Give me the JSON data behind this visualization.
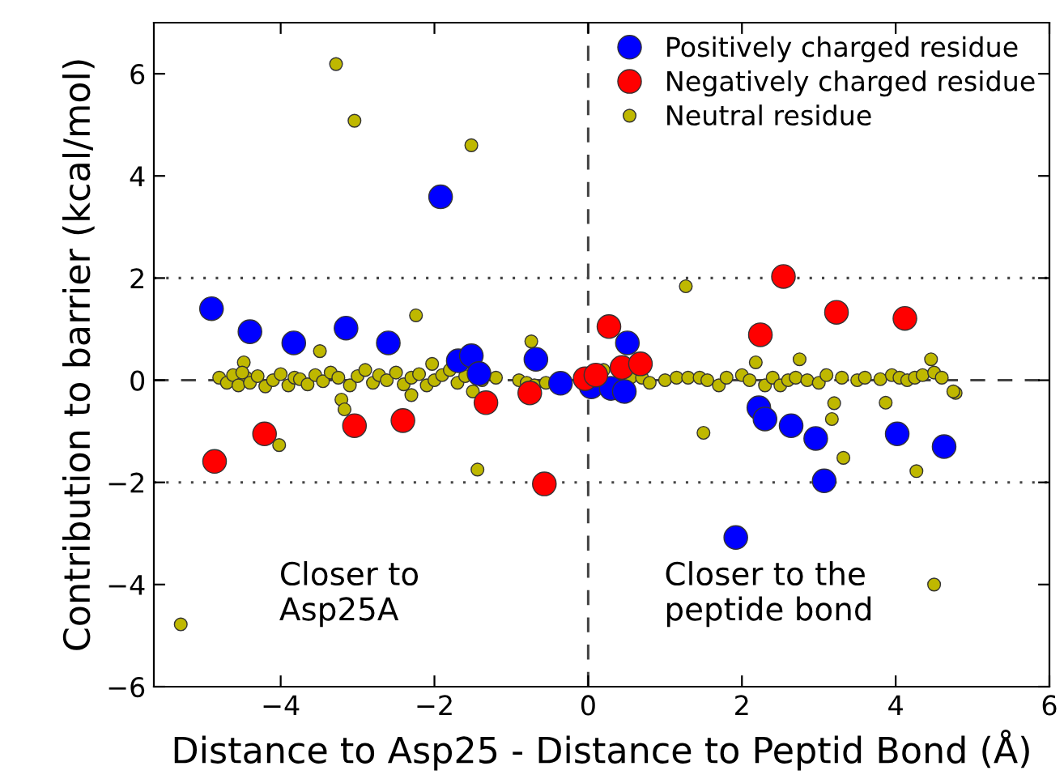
{
  "chart_data": {
    "type": "scatter",
    "xlabel": "Distance to Asp25 - Distance to Peptid Bond (Å)",
    "ylabel": "Contribution to barrier (kcal/mol)",
    "xlim": [
      -5.65,
      6
    ],
    "ylim": [
      -6,
      7
    ],
    "xticks": [
      {
        "value": -4,
        "label": "−4"
      },
      {
        "value": -2,
        "label": "−2"
      },
      0,
      2,
      4,
      6
    ],
    "yticks": [
      {
        "value": -6,
        "label": "−6"
      },
      {
        "value": -4,
        "label": "−4"
      },
      {
        "value": -2,
        "label": "−2"
      },
      0,
      2,
      4,
      6
    ],
    "marker": "circle",
    "legend": "top right",
    "grid": false,
    "ref_lines": [
      {
        "axis": "y",
        "value": 0,
        "line_style": "dashed"
      },
      {
        "axis": "y",
        "value": 2,
        "line_style": "dotted"
      },
      {
        "axis": "y",
        "value": -2,
        "line_style": "dotted"
      },
      {
        "axis": "x",
        "value": 0,
        "line_style": "dashed"
      }
    ],
    "annotations": [
      "Closer to\nAsp25A",
      "Closer to the\npeptide bond"
    ],
    "series": [
      {
        "name": "Positively charged residue",
        "color": "#0000ff",
        "x": [
          -4.9,
          -4.4,
          -3.83,
          -3.15,
          -2.6,
          -1.92,
          -1.69,
          -1.52,
          -1.42,
          -0.68,
          -0.36,
          0.04,
          0.3,
          0.47,
          0.51,
          2.22,
          2.3,
          2.64,
          2.96,
          3.07,
          4.02,
          4.63,
          1.92
        ],
        "values": [
          1.4,
          0.95,
          0.73,
          1.02,
          0.73,
          3.59,
          0.38,
          0.48,
          0.13,
          0.41,
          -0.06,
          -0.13,
          -0.16,
          -0.22,
          0.73,
          -0.54,
          -0.76,
          -0.89,
          -1.14,
          -1.97,
          -1.05,
          -1.3,
          -3.08
        ]
      },
      {
        "name": "Negatively charged residue",
        "color": "#ff0000",
        "x": [
          -4.86,
          -4.21,
          -3.04,
          -2.41,
          -1.33,
          -0.76,
          -0.57,
          -0.04,
          0.1,
          0.27,
          0.44,
          0.68,
          2.24,
          2.54,
          3.23,
          4.12
        ],
        "values": [
          -1.59,
          -1.05,
          -0.89,
          -0.79,
          -0.44,
          -0.25,
          -2.03,
          0.03,
          0.1,
          1.05,
          0.25,
          0.32,
          0.89,
          2.03,
          1.33,
          1.21
        ]
      },
      {
        "name": "Neutral residue",
        "color": "#bfb800",
        "x": [
          -3.28,
          -3.04,
          -1.52,
          -2.24,
          -5.3,
          4.5,
          1.5,
          1.27,
          -1.44,
          -4.02,
          4.27,
          3.32,
          3.2,
          3.17,
          3.87,
          4.78,
          4.46,
          2.18,
          2.75,
          -3.49,
          -0.74,
          -3.21,
          -3.17,
          -2.3,
          -2.03,
          -1.5,
          -4.48,
          -4.45,
          -4.8,
          -4.7,
          -4.62,
          -4.55,
          -4.5,
          -4.4,
          -4.3,
          -4.2,
          -4.1,
          -4.0,
          -3.9,
          -3.82,
          -3.75,
          -3.65,
          -3.55,
          -3.45,
          -3.35,
          -3.25,
          -3.1,
          -3.0,
          -2.9,
          -2.8,
          -2.72,
          -2.62,
          -2.5,
          -2.4,
          -2.3,
          -2.2,
          -2.1,
          -2.0,
          -1.9,
          -1.8,
          -1.7,
          -1.6,
          -1.38,
          -1.2,
          -0.9,
          -0.8,
          -0.7,
          -0.55,
          0.15,
          0.2,
          0.35,
          0.55,
          0.7,
          0.8,
          1.0,
          1.15,
          1.3,
          1.45,
          1.55,
          1.7,
          1.8,
          2.0,
          2.1,
          2.3,
          2.4,
          2.5,
          2.6,
          2.7,
          2.85,
          3.0,
          3.1,
          3.3,
          3.5,
          3.6,
          3.8,
          3.95,
          4.05,
          4.15,
          4.25,
          4.35,
          4.5,
          4.6,
          4.75
        ],
        "values": [
          6.19,
          5.08,
          4.6,
          1.27,
          -4.78,
          -4.0,
          -1.03,
          1.84,
          -1.75,
          -1.27,
          -1.78,
          -1.52,
          -0.45,
          -0.76,
          -0.44,
          -0.25,
          0.41,
          0.35,
          0.41,
          0.57,
          0.76,
          -0.38,
          -0.57,
          -0.29,
          0.32,
          -0.22,
          0.35,
          0.05,
          0.05,
          -0.05,
          0.1,
          -0.1,
          0.15,
          -0.05,
          0.08,
          -0.12,
          0.0,
          0.12,
          -0.1,
          0.05,
          0.02,
          -0.08,
          0.1,
          -0.02,
          0.15,
          0.05,
          -0.1,
          0.08,
          0.2,
          -0.05,
          0.1,
          0.0,
          0.15,
          -0.08,
          0.05,
          0.12,
          -0.1,
          0.0,
          0.1,
          0.2,
          -0.05,
          0.08,
          0.0,
          0.05,
          0.0,
          -0.05,
          -0.1,
          -0.05,
          null,
          0.2,
          null,
          0.05,
          0.05,
          -0.05,
          0.0,
          0.05,
          0.05,
          0.05,
          0.0,
          -0.1,
          0.05,
          0.1,
          0.0,
          -0.1,
          0.05,
          -0.1,
          0.0,
          0.05,
          0.0,
          -0.05,
          0.1,
          0.05,
          0.0,
          0.05,
          0.02,
          0.1,
          0.05,
          0.0,
          0.05,
          0.1,
          0.15,
          0.05,
          -0.22
        ]
      }
    ]
  }
}
